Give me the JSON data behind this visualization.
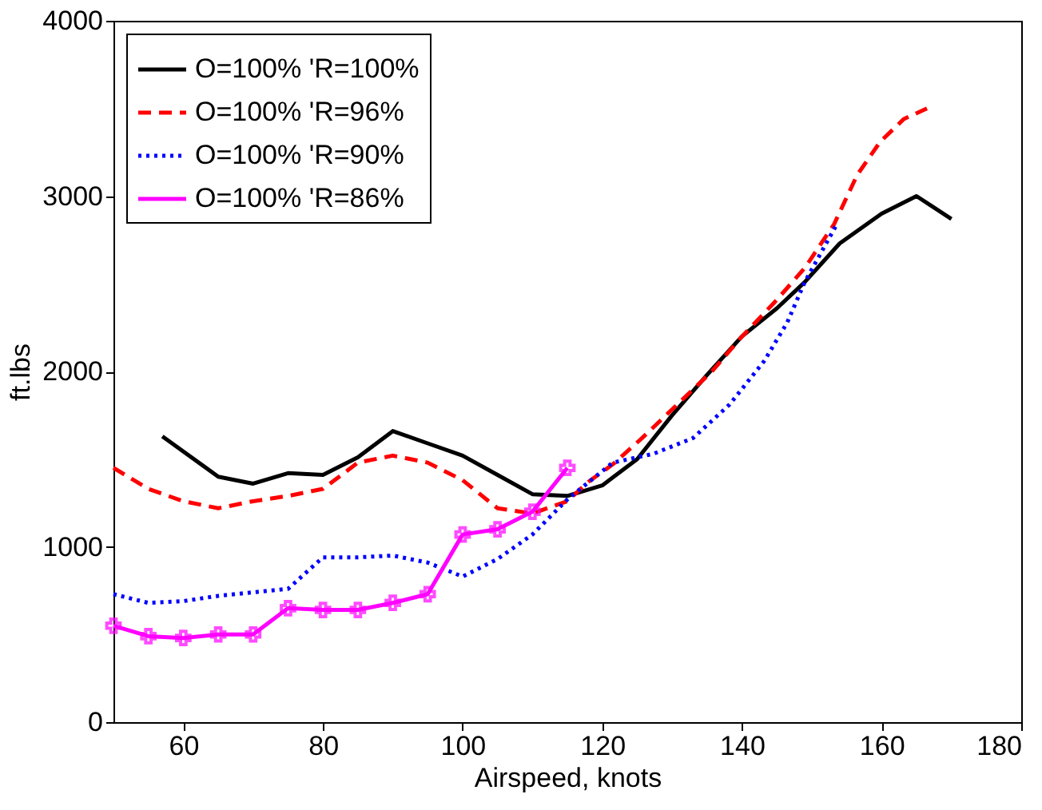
{
  "chart_data": {
    "type": "line",
    "xlabel": "Airspeed, knots",
    "ylabel": "ft.lbs",
    "xlim": [
      50,
      180
    ],
    "xticks": [
      60,
      80,
      100,
      120,
      140,
      160,
      180
    ],
    "ylim": [
      0,
      4000
    ],
    "yticks": [
      0,
      1000,
      2000,
      3000,
      4000
    ],
    "grid": false,
    "legend": "top left",
    "series": [
      {
        "name": "O=100% 'R=100%",
        "color": "#000000",
        "line_style": "solid",
        "marker": "none",
        "x": [
          57,
          65,
          70,
          75,
          80,
          85,
          90,
          95,
          100,
          105,
          110,
          115,
          120,
          125,
          130,
          135,
          140,
          145,
          149,
          154,
          160,
          165,
          170
        ],
        "values": [
          1630,
          1400,
          1360,
          1420,
          1410,
          1510,
          1660,
          1590,
          1520,
          1410,
          1300,
          1290,
          1350,
          1500,
          1750,
          1980,
          2200,
          2360,
          2510,
          2730,
          2900,
          3000,
          2870
        ]
      },
      {
        "name": "O=100% 'R=96%",
        "color": "#ff0000",
        "line_style": "dashed",
        "marker": "none",
        "x": [
          50,
          55,
          60,
          65,
          70,
          75,
          80,
          85,
          90,
          95,
          100,
          105,
          110,
          115,
          118,
          121.5,
          125.7,
          130.7,
          135.7,
          139.8,
          144.8,
          149,
          153.2,
          156.5,
          159.8,
          163.2,
          166.5
        ],
        "values": [
          1450,
          1330,
          1260,
          1220,
          1260,
          1290,
          1330,
          1480,
          1520,
          1480,
          1380,
          1220,
          1190,
          1260,
          1370,
          1470,
          1620,
          1810,
          2000,
          2190,
          2400,
          2590,
          2840,
          3120,
          3310,
          3440,
          3500
        ]
      },
      {
        "name": "O=100% 'R=90%",
        "color": "#0000ff",
        "line_style": "dotted",
        "marker": "none",
        "x": [
          50,
          55,
          60,
          65,
          70,
          75,
          80,
          85,
          90,
          95,
          100,
          105,
          110,
          115,
          121.5,
          127.3,
          133,
          138.2,
          143.2,
          146.5,
          149,
          151.5,
          153.6
        ],
        "values": [
          730,
          680,
          690,
          720,
          740,
          760,
          940,
          940,
          950,
          910,
          830,
          930,
          1070,
          1270,
          1480,
          1530,
          1620,
          1810,
          2060,
          2280,
          2510,
          2690,
          2840
        ]
      },
      {
        "name": "O=100% 'R=86%",
        "color": "#ff00ff",
        "line_style": "solid",
        "marker": "cross",
        "x": [
          50,
          55,
          60,
          65,
          70,
          75,
          80,
          85,
          90,
          95,
          100,
          105,
          110,
          115
        ],
        "values": [
          550,
          490,
          480,
          500,
          500,
          650,
          640,
          640,
          680,
          730,
          1070,
          1100,
          1200,
          1450
        ]
      }
    ]
  }
}
